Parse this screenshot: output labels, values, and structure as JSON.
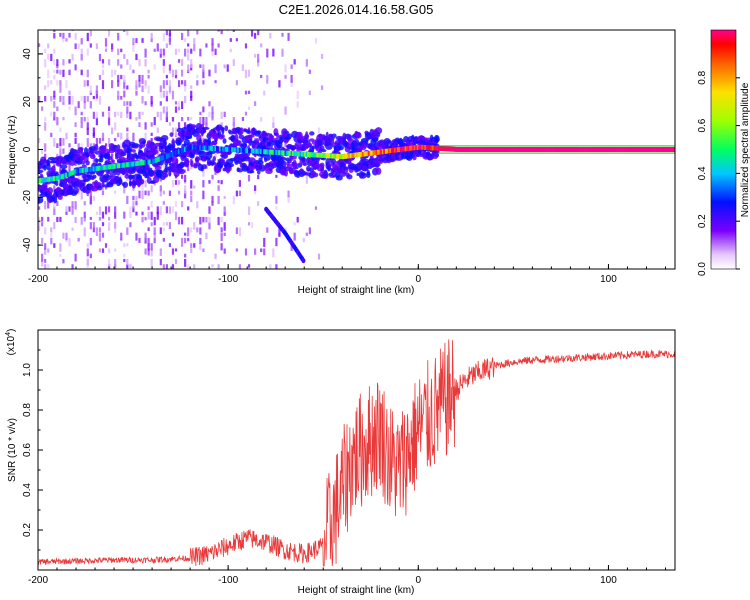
{
  "figure_title": "C2E1.2026.014.16.58.G05",
  "chart_data": [
    {
      "type": "heatmap",
      "title": "C2E1.2026.014.16.58.G05",
      "xlabel": "Height of straight line (km)",
      "ylabel": "Frequency (Hz)",
      "xlim": [
        -200,
        135
      ],
      "ylim": [
        -50,
        50
      ],
      "xticks": [
        -200,
        -100,
        0,
        100
      ],
      "xtick_labels": [
        "-200",
        "-100",
        "0",
        "100"
      ],
      "yticks": [
        -40,
        -20,
        0,
        20,
        40
      ],
      "ytick_labels": [
        "-40",
        "-20",
        "0",
        "20",
        "40"
      ],
      "colorbar": {
        "label": "Normalized spectral amplitude",
        "range": [
          0,
          1
        ],
        "ticks": [
          0.0,
          0.2,
          0.4,
          0.6,
          0.8
        ],
        "tick_labels": [
          "0.0",
          "0.2",
          "0.4",
          "0.6",
          "0.8"
        ]
      },
      "description_series": {
        "name": "dominant frequency trace",
        "x": [
          -200,
          -190,
          -180,
          -160,
          -140,
          -120,
          -100,
          -80,
          -60,
          -40,
          -20,
          0,
          20,
          60,
          100,
          135
        ],
        "y": [
          -13,
          -12,
          -9,
          -7,
          -5,
          1,
          0,
          -1,
          -2,
          -3,
          -1,
          1,
          0,
          0,
          0,
          0
        ],
        "amplitude": [
          0.5,
          0.45,
          0.4,
          0.45,
          0.4,
          0.3,
          0.35,
          0.4,
          0.5,
          0.7,
          0.85,
          0.95,
          1.0,
          1.0,
          1.0,
          1.0
        ]
      },
      "secondary_trace": {
        "name": "descending branch",
        "x": [
          -80,
          -75,
          -70,
          -65,
          -60
        ],
        "y": [
          -25,
          -30,
          -35,
          -41,
          -47
        ]
      }
    },
    {
      "type": "line",
      "xlabel": "Height of straight line (km)",
      "ylabel": "SNR (10 * v/v)",
      "y_multiplier": "(x10",
      "y_multiplier_exp": "4",
      "y_multiplier_close": ")",
      "xlim": [
        -200,
        135
      ],
      "ylim": [
        0,
        1.2
      ],
      "xticks": [
        -200,
        -100,
        0,
        100
      ],
      "xtick_labels": [
        "-200",
        "-100",
        "0",
        "100"
      ],
      "yticks": [
        0.2,
        0.4,
        0.6,
        0.8,
        1.0
      ],
      "ytick_labels": [
        "0.2",
        "0.4",
        "0.6",
        "0.8",
        "1.0"
      ],
      "series": [
        {
          "name": "SNR",
          "color": "#e83a3a",
          "x": [
            -200,
            -180,
            -160,
            -140,
            -120,
            -110,
            -100,
            -90,
            -80,
            -70,
            -60,
            -50,
            -45,
            -40,
            -35,
            -30,
            -25,
            -20,
            -15,
            -10,
            -5,
            0,
            5,
            10,
            15,
            20,
            25,
            30,
            40,
            50,
            60,
            80,
            100,
            120,
            135
          ],
          "y": [
            0.04,
            0.045,
            0.05,
            0.05,
            0.06,
            0.08,
            0.12,
            0.16,
            0.14,
            0.1,
            0.08,
            0.12,
            0.25,
            0.4,
            0.55,
            0.6,
            0.65,
            0.7,
            0.55,
            0.5,
            0.6,
            0.7,
            0.75,
            0.8,
            0.85,
            0.9,
            0.95,
            0.98,
            1.02,
            1.04,
            1.05,
            1.06,
            1.07,
            1.08,
            1.08
          ]
        }
      ]
    }
  ]
}
